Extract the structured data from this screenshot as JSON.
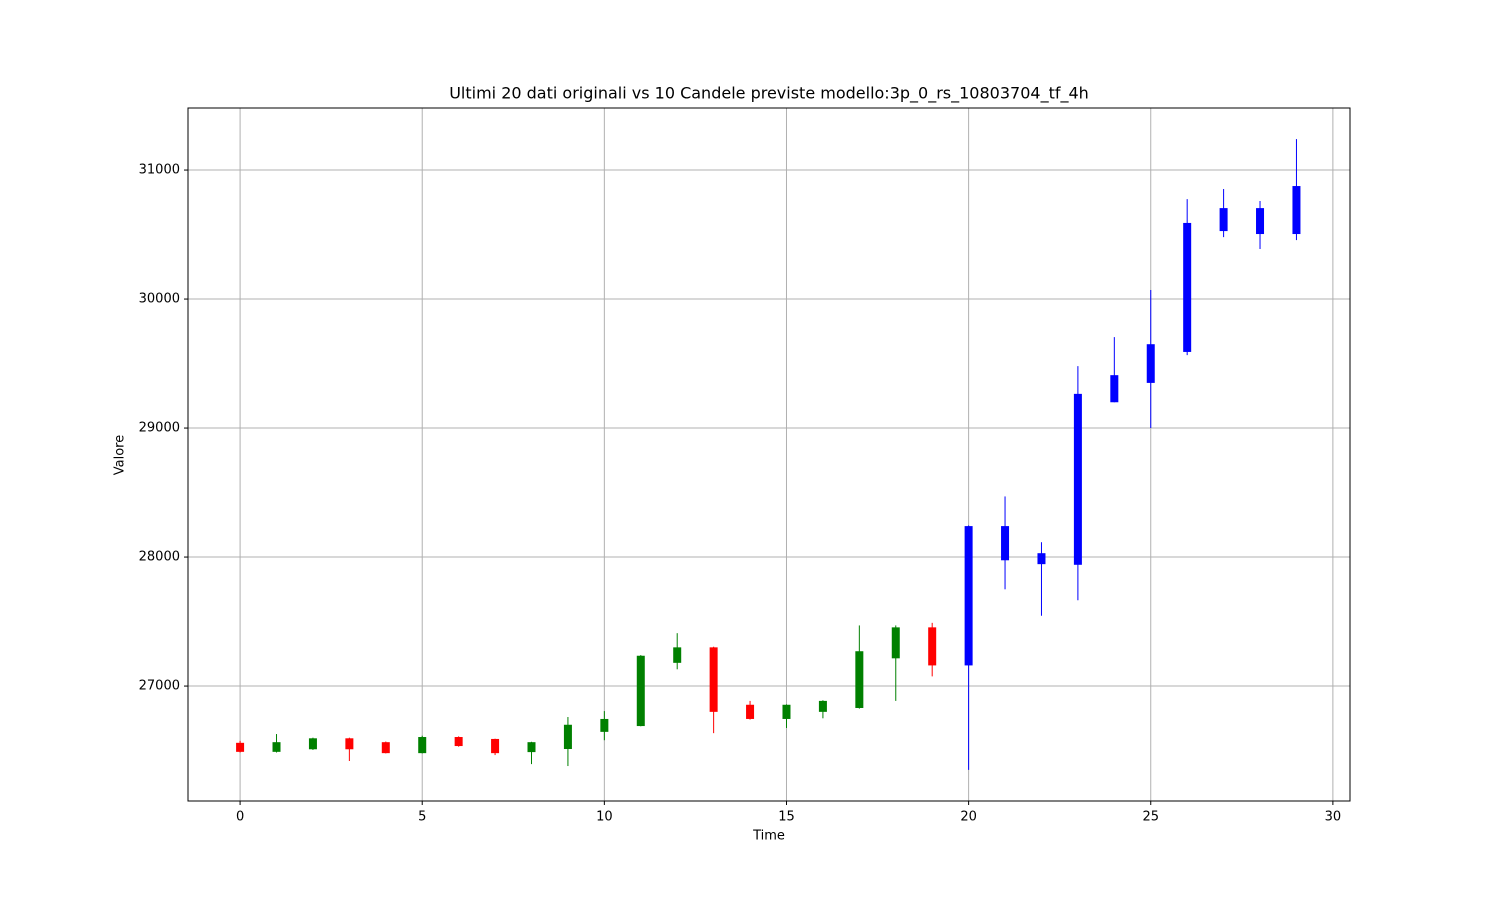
{
  "chart_data": {
    "type": "candlestick",
    "title": "Ultimi 20 dati originali vs 10 Candele previste modello:3p_0_rs_10803704_tf_4h",
    "x_label": "Time",
    "y_label": "Valore",
    "xlim": [
      -1.43,
      30.47
    ],
    "ylim": [
      26109,
      31481
    ],
    "xticks": [
      0,
      5,
      10,
      15,
      20,
      25,
      30
    ],
    "yticks": [
      27000,
      28000,
      29000,
      30000,
      31000
    ],
    "grid": true,
    "series": [
      {
        "up_color": "green",
        "down_color": "red",
        "x": [
          0,
          1,
          2,
          3,
          4,
          5,
          6,
          7,
          8,
          9,
          10,
          11,
          12,
          13,
          14,
          15,
          16,
          17,
          18,
          19
        ],
        "open": [
          26560,
          26490,
          26510,
          26595,
          26565,
          26480,
          26605,
          26590,
          26488,
          26512,
          26645,
          26690,
          27180,
          27300,
          26855,
          26745,
          26800,
          26830,
          27215,
          27455
        ],
        "high": [
          26575,
          26628,
          26600,
          26600,
          26570,
          26615,
          26610,
          26592,
          26568,
          26760,
          26806,
          27240,
          27410,
          27305,
          26885,
          26858,
          26890,
          27470,
          27470,
          27490
        ],
        "low": [
          26485,
          26485,
          26505,
          26419,
          26478,
          26478,
          26530,
          26465,
          26395,
          26380,
          26580,
          26688,
          27130,
          26635,
          26740,
          26675,
          26750,
          26825,
          26885,
          27075
        ],
        "close": [
          26490,
          26565,
          26595,
          26510,
          26480,
          26605,
          26535,
          26480,
          26565,
          26700,
          26745,
          27235,
          27300,
          26800,
          26745,
          26855,
          26885,
          27270,
          27455,
          27160
        ]
      },
      {
        "color": "blue",
        "x": [
          20,
          21,
          22,
          23,
          24,
          25,
          26,
          27,
          28,
          29
        ],
        "open": [
          27160,
          28240,
          27945,
          27940,
          29200,
          29350,
          29590,
          30527,
          30504,
          30504
        ],
        "high": [
          28245,
          28470,
          28115,
          29480,
          29705,
          30070,
          30775,
          30853,
          30760,
          31240
        ],
        "low": [
          26350,
          27750,
          27545,
          27665,
          29200,
          29000,
          29565,
          30480,
          30388,
          30457
        ],
        "close": [
          28240,
          27975,
          28030,
          29265,
          29410,
          29650,
          30590,
          30705,
          30705,
          30876
        ]
      }
    ]
  }
}
